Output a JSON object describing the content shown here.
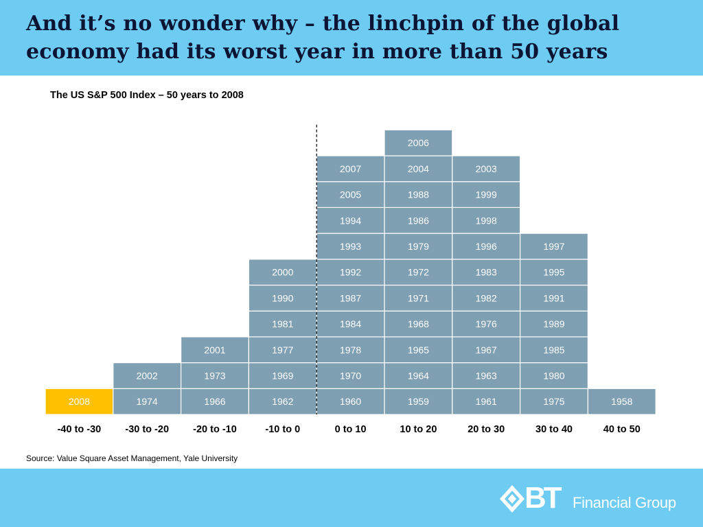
{
  "slide": {
    "title": "And it’s no wonder why – the linchpin of the global economy had its worst year in more than 50 years",
    "source": "Source: Value Square Asset Management, Yale University"
  },
  "logo": {
    "mark": "BT",
    "text": "Financial Group",
    "icon": "diamond-arrow-icon"
  },
  "colors": {
    "band": "#6ecbf1",
    "cell": "#7f9fb2",
    "highlight": "#ffc000",
    "cell_text": "#ffffff"
  },
  "chart_data": {
    "type": "table",
    "title": "The US S&P 500 Index – 50 years to 2008",
    "categories": [
      "-40 to -30",
      "-30 to -20",
      "-20 to -10",
      "-10 to 0",
      "0 to 10",
      "10 to 20",
      "20 to 30",
      "30 to 40",
      "40 to 50"
    ],
    "columns": [
      [
        "2008"
      ],
      [
        "1974",
        "2002"
      ],
      [
        "1966",
        "1973",
        "2001"
      ],
      [
        "1962",
        "1969",
        "1977",
        "1981",
        "1990",
        "2000"
      ],
      [
        "1960",
        "1970",
        "1978",
        "1984",
        "1987",
        "1992",
        "1993",
        "1994",
        "2005",
        "2007"
      ],
      [
        "1959",
        "1964",
        "1965",
        "1968",
        "1971",
        "1972",
        "1979",
        "1986",
        "1988",
        "2004",
        "2006"
      ],
      [
        "1961",
        "1963",
        "1967",
        "1976",
        "1982",
        "1983",
        "1996",
        "1998",
        "1999",
        "2003"
      ],
      [
        "1975",
        "1980",
        "1985",
        "1989",
        "1991",
        "1995",
        "1997"
      ],
      [
        "1958"
      ]
    ],
    "counts": [
      1,
      2,
      3,
      6,
      10,
      11,
      10,
      7,
      1
    ],
    "highlight": "2008"
  }
}
